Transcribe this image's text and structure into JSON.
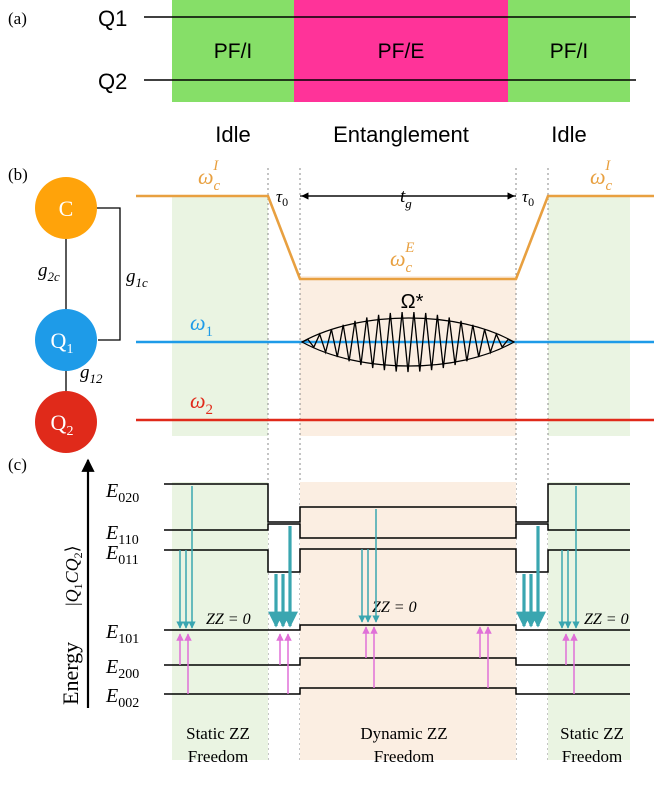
{
  "panel_a": {
    "tag": "(a)",
    "qubit_top": "Q1",
    "qubit_bottom": "Q2",
    "blocks": [
      "PF/I",
      "PF/E",
      "PF/I"
    ],
    "phases": [
      "Idle",
      "Entanglement",
      "Idle"
    ]
  },
  "panel_b": {
    "tag": "(b)",
    "node_c": "C",
    "node_q1": "Q",
    "node_q1_sub": "1",
    "node_q2": "Q",
    "node_q2_sub": "2",
    "g2c": "g",
    "g2c_sub": "2c",
    "g1c": "g",
    "g1c_sub": "1c",
    "g12": "g",
    "g12_sub": "12",
    "omega_c_idle": "ω",
    "omega_c_idle_sub": "c",
    "omega_c_idle_sup": "I",
    "omega_c_ent": "ω",
    "omega_c_ent_sub": "c",
    "omega_c_ent_sup": "E",
    "tau0": "τ",
    "tau0_sub": "0",
    "tg": "t",
    "tg_sub": "g",
    "omega_star": "Ω*",
    "omega1": "ω",
    "omega1_sub": "1",
    "omega2": "ω",
    "omega2_sub": "2"
  },
  "panel_c": {
    "tag": "(c)",
    "axis_energy": "Energy",
    "axis_ket_open": "|",
    "axis_ket_q": "Q",
    "axis_ket_q_sub": "1",
    "axis_ket_c": "C",
    "axis_ket_q2": "Q",
    "axis_ket_q2_sub": "2",
    "axis_ket_close": "⟩",
    "levels": [
      {
        "name": "E",
        "sub": "020"
      },
      {
        "name": "E",
        "sub": "110"
      },
      {
        "name": "E",
        "sub": "011"
      },
      {
        "name": "E",
        "sub": "101"
      },
      {
        "name": "E",
        "sub": "200"
      },
      {
        "name": "E",
        "sub": "002"
      }
    ],
    "zz_label": "ZZ = 0",
    "region_left_1": "Static ZZ",
    "region_left_2": "Freedom",
    "region_mid_1": "Dynamic ZZ",
    "region_mid_2": "Freedom",
    "region_right_1": "Static ZZ",
    "region_right_2": "Freedom"
  },
  "colors": {
    "idle_green": "#86df68",
    "entangle_pink": "#ff3399",
    "coupler_orange": "#e8a040",
    "q1_blue": "#1e9be8",
    "q2_red": "#e02a1a",
    "node_c": "#ffa30a",
    "teal_arrow": "#3aa6b0",
    "magenta_arrow": "#e070d8",
    "light_green_region": "#eaf4e2",
    "light_peach_region": "#fbeee2"
  }
}
